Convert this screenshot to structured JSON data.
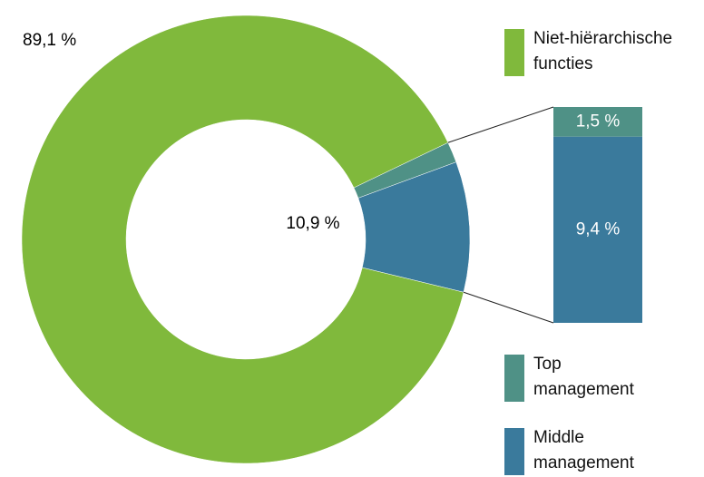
{
  "chart_data": {
    "type": "pie",
    "donut": true,
    "categories": [
      "Niet-hiërarchische functies",
      "Top management",
      "Middle management"
    ],
    "values": [
      89.1,
      1.5,
      9.4
    ],
    "value_labels": [
      "89,1 %",
      "1,5 %",
      "9,4 %"
    ],
    "colors": [
      "#80b93c",
      "#4f9186",
      "#3a7a9c"
    ],
    "annotations": [
      {
        "value": 10.9,
        "label": "10,9 %"
      }
    ]
  }
}
